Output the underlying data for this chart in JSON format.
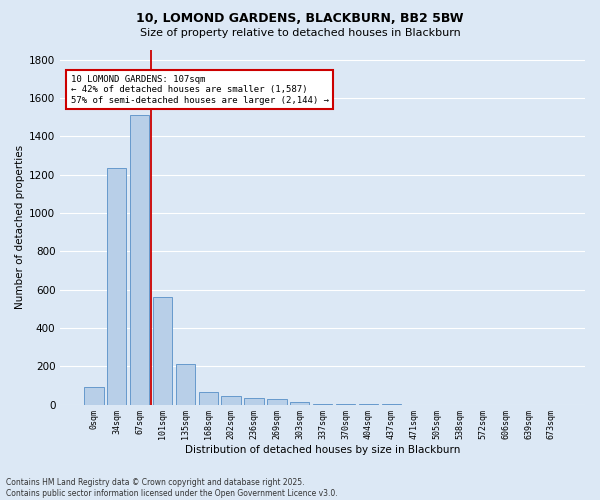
{
  "title1": "10, LOMOND GARDENS, BLACKBURN, BB2 5BW",
  "title2": "Size of property relative to detached houses in Blackburn",
  "xlabel": "Distribution of detached houses by size in Blackburn",
  "ylabel": "Number of detached properties",
  "categories": [
    "0sqm",
    "34sqm",
    "67sqm",
    "101sqm",
    "135sqm",
    "168sqm",
    "202sqm",
    "236sqm",
    "269sqm",
    "303sqm",
    "337sqm",
    "370sqm",
    "404sqm",
    "437sqm",
    "471sqm",
    "505sqm",
    "538sqm",
    "572sqm",
    "606sqm",
    "639sqm",
    "673sqm"
  ],
  "values": [
    90,
    1235,
    1510,
    560,
    210,
    65,
    45,
    35,
    27,
    15,
    5,
    3,
    2,
    1,
    0,
    0,
    0,
    0,
    0,
    0,
    0
  ],
  "bar_color": "#b8cfe8",
  "bar_edge_color": "#6699cc",
  "background_color": "#dce8f5",
  "fig_background_color": "#dce8f5",
  "grid_color": "#ffffff",
  "vline_color": "#cc0000",
  "vline_x_index": 3,
  "annotation_text": "10 LOMOND GARDENS: 107sqm\n← 42% of detached houses are smaller (1,587)\n57% of semi-detached houses are larger (2,144) →",
  "annotation_box_edgecolor": "#cc0000",
  "ylim": [
    0,
    1850
  ],
  "yticks": [
    0,
    200,
    400,
    600,
    800,
    1000,
    1200,
    1400,
    1600,
    1800
  ],
  "footer1": "Contains HM Land Registry data © Crown copyright and database right 2025.",
  "footer2": "Contains public sector information licensed under the Open Government Licence v3.0."
}
